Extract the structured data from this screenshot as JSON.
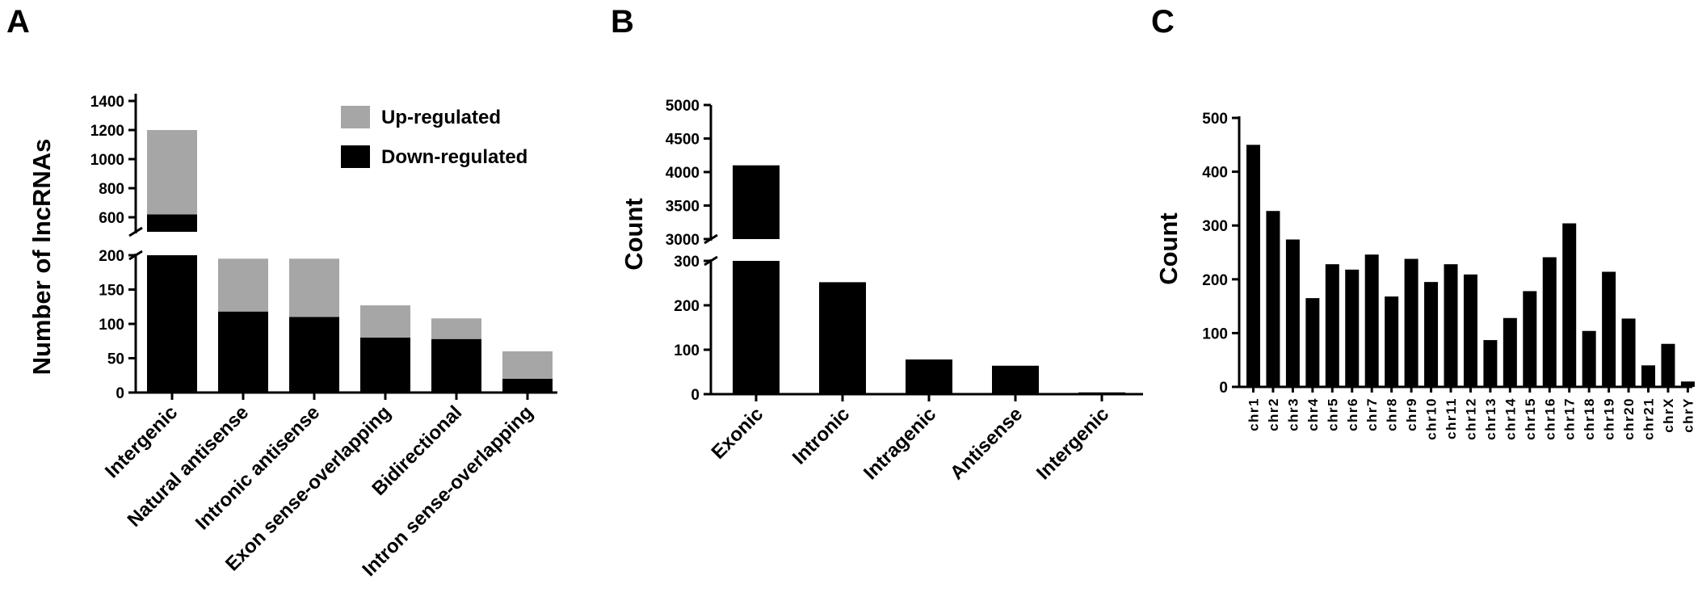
{
  "panels": {
    "a": "A",
    "b": "B",
    "c": "C"
  },
  "colors": {
    "up": "#a6a6a6",
    "down": "#000000"
  },
  "chart_data": [
    {
      "type": "bar",
      "stacked": true,
      "broken_y_axis": true,
      "ylabel": "Number of lncRNAs",
      "categories": [
        "Intergenic",
        "Natural antisense",
        "Intronic antisense",
        "Exon sense-overlapping",
        "Bidirectional",
        "Intron sense-overlapping"
      ],
      "series": [
        {
          "name": "Down-regulated",
          "values": [
            620,
            118,
            110,
            80,
            78,
            20
          ]
        },
        {
          "name": "Up-regulated",
          "values": [
            580,
            77,
            85,
            47,
            30,
            40
          ]
        }
      ],
      "legend_position": "top-right",
      "y_lower_ticks": [
        "0",
        "50",
        "100",
        "150",
        "200"
      ],
      "y_upper_ticks": [
        "600",
        "800",
        "1000",
        "1200",
        "1400"
      ],
      "ylim_lower": [
        0,
        200
      ],
      "ylim_upper": [
        500,
        1450
      ]
    },
    {
      "type": "bar",
      "broken_y_axis": true,
      "ylabel": "Count",
      "categories": [
        "Exonic",
        "Intronic",
        "Intragenic",
        "Antisense",
        "Intergenic"
      ],
      "values": [
        4100,
        252,
        78,
        64,
        4
      ],
      "y_lower_ticks": [
        "0",
        "100",
        "200",
        "300"
      ],
      "y_upper_ticks": [
        "3000",
        "3500",
        "4000",
        "4500",
        "5000"
      ],
      "ylim_lower": [
        0,
        300
      ],
      "ylim_upper": [
        3000,
        5000
      ]
    },
    {
      "type": "bar",
      "ylabel": "Count",
      "categories": [
        "chr1",
        "chr2",
        "chr3",
        "chr4",
        "chr5",
        "chr6",
        "chr7",
        "chr8",
        "chr9",
        "chr10",
        "chr11",
        "chr12",
        "chr13",
        "chr14",
        "chr15",
        "chr16",
        "chr17",
        "chr18",
        "chr19",
        "chr20",
        "chr21",
        "chrX",
        "chrY"
      ],
      "values": [
        450,
        327,
        274,
        165,
        228,
        218,
        246,
        168,
        238,
        195,
        228,
        209,
        87,
        128,
        178,
        241,
        304,
        104,
        214,
        127,
        40,
        80,
        10
      ],
      "y_ticks": [
        "0",
        "100",
        "200",
        "300",
        "400",
        "500"
      ],
      "ylim": [
        0,
        500
      ]
    }
  ]
}
